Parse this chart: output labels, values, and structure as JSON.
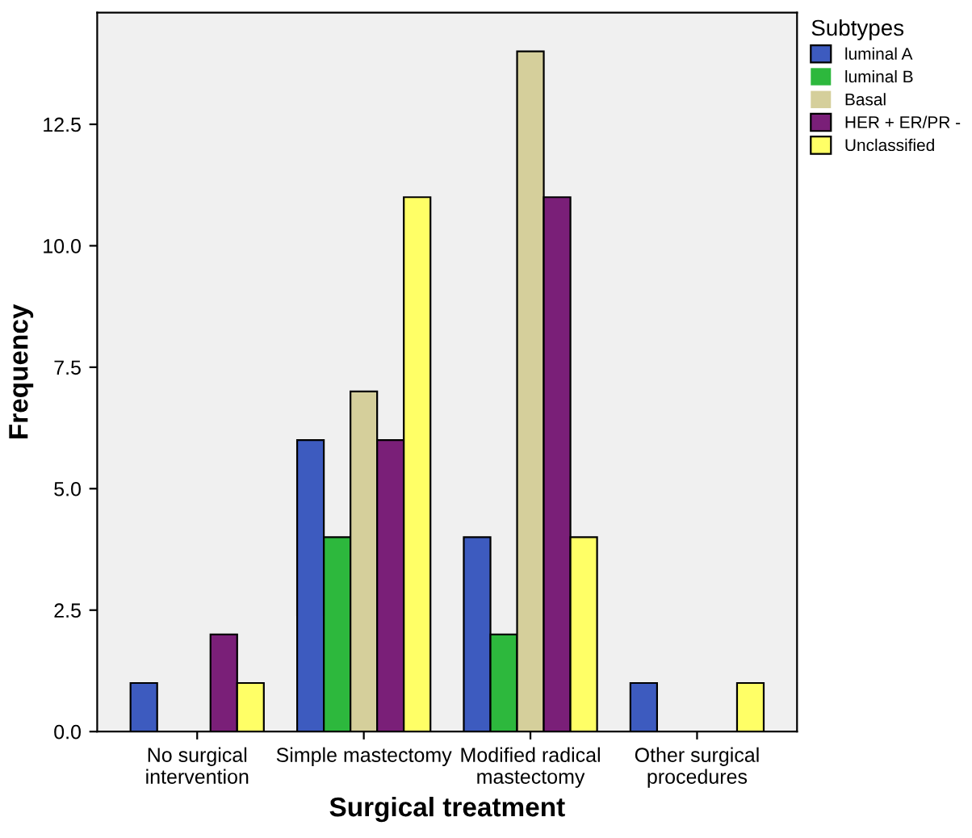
{
  "chart_data": {
    "type": "bar",
    "xlabel": "Surgical treatment",
    "ylabel": "Frequency",
    "legend_title": "Subtypes",
    "categories": [
      "No surgical\nintervention",
      "Simple mastectomy",
      "Modified radical\nmastectomy",
      "Other surgical\nprocedures"
    ],
    "series": [
      {
        "name": "luminal A",
        "color": "#3d5bbf",
        "values": [
          1,
          6,
          4,
          1
        ]
      },
      {
        "name": "luminal B",
        "color": "#2db83d",
        "values": [
          0,
          4,
          2,
          0
        ]
      },
      {
        "name": "Basal",
        "color": "#d5cf9b",
        "values": [
          0,
          7,
          14,
          0
        ]
      },
      {
        "name": "HER + ER/PR -",
        "color": "#7a1f78",
        "values": [
          2,
          6,
          11,
          0
        ]
      },
      {
        "name": "Unclassified",
        "color": "#ffff66",
        "values": [
          1,
          11,
          4,
          1
        ]
      }
    ],
    "ylim": [
      0,
      14.8
    ],
    "yticks": [
      {
        "value": 0,
        "label": "0.0"
      },
      {
        "value": 2.5,
        "label": "2.5"
      },
      {
        "value": 5,
        "label": "5.0"
      },
      {
        "value": 7.5,
        "label": "7.5"
      },
      {
        "value": 10,
        "label": "10.0"
      },
      {
        "value": 12.5,
        "label": "12.5"
      }
    ],
    "grid": false,
    "legend": "right"
  }
}
